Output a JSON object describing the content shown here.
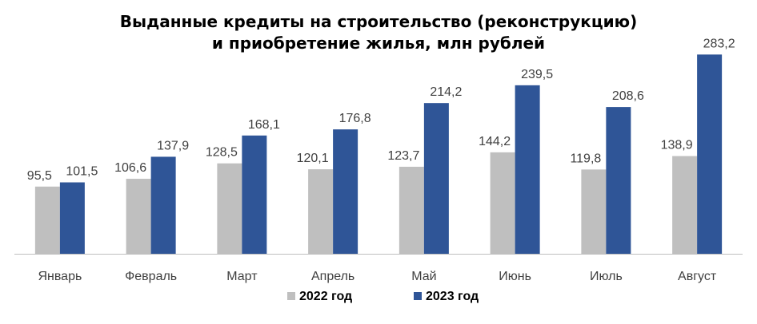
{
  "chart_data": {
    "type": "bar",
    "title_lines": [
      "Выданные кредиты на строительство (реконструкцию)",
      "и приобретение жилья, млн рублей"
    ],
    "categories": [
      "Январь",
      "Февраль",
      "Март",
      "Апрель",
      "Май",
      "Июнь",
      "Июль",
      "Август"
    ],
    "series": [
      {
        "name": "2022 год",
        "color": "#bfbfbf",
        "values": [
          95.5,
          106.6,
          128.5,
          120.1,
          123.7,
          144.2,
          119.8,
          138.9
        ],
        "labels": [
          "95,5",
          "106,6",
          "128,5",
          "120,1",
          "123,7",
          "144,2",
          "119,8",
          "138,9"
        ]
      },
      {
        "name": "2023 год",
        "color": "#2f5597",
        "values": [
          101.5,
          137.9,
          168.1,
          176.8,
          214.2,
          239.5,
          208.6,
          283.2
        ],
        "labels": [
          "101,5",
          "137,9",
          "168,1",
          "176,8",
          "214,2",
          "239,5",
          "208,6",
          "283,2"
        ]
      }
    ],
    "ylim": [
      0,
      300
    ],
    "grid": false,
    "legend_position": "bottom-center"
  }
}
